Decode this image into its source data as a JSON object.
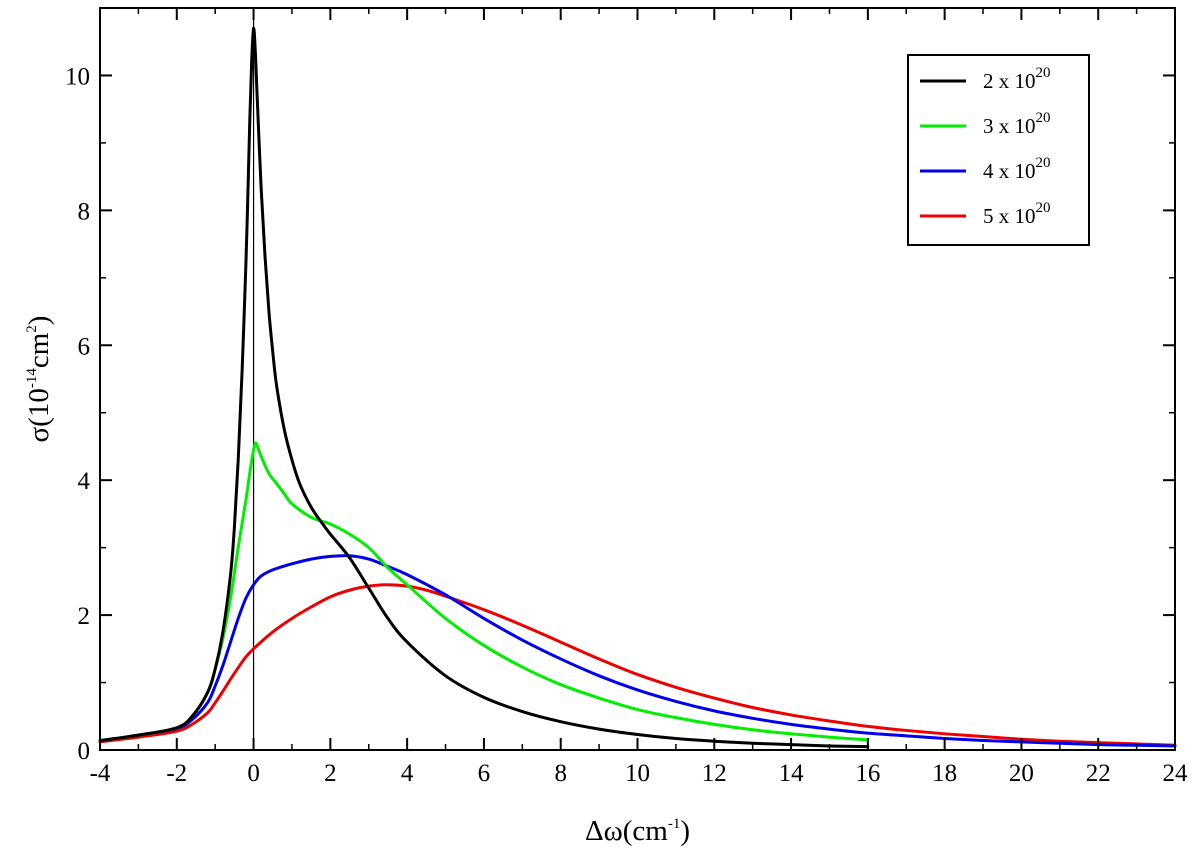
{
  "chart_data": {
    "type": "line",
    "title": "",
    "xlabel": {
      "base": "Δω(cm",
      "sup": "-1",
      "tail": ")"
    },
    "ylabel": {
      "base": "σ(10",
      "sup1": "-14",
      "mid": "cm",
      "sup2": "2",
      "tail": ")"
    },
    "xlim": [
      -4,
      24
    ],
    "ylim": [
      0,
      11
    ],
    "xticks": [
      -4,
      -2,
      0,
      2,
      4,
      6,
      8,
      10,
      12,
      14,
      16,
      18,
      20,
      22,
      24
    ],
    "yticks": [
      0,
      2,
      4,
      6,
      8,
      10
    ],
    "grid": false,
    "legend_position": "top-right",
    "reference_line_x": 0,
    "series": [
      {
        "name": {
          "base": "2 x 10",
          "sup": "20"
        },
        "color": "#000000",
        "x": [
          -4,
          -3,
          -2,
          -1.6,
          -1.2,
          -1.0,
          -0.8,
          -0.6,
          -0.5,
          -0.4,
          -0.3,
          -0.2,
          -0.15,
          -0.1,
          -0.05,
          0,
          0.05,
          0.1,
          0.2,
          0.3,
          0.4,
          0.5,
          0.6,
          0.8,
          1.0,
          1.2,
          1.5,
          1.8,
          2.0,
          2.5,
          3.0,
          3.5,
          4.0,
          5.0,
          6.0,
          7.0,
          8.0,
          9.0,
          10.0,
          11.0,
          12.0,
          13.0,
          14.0,
          15.0,
          16.0
        ],
        "y": [
          0.14,
          0.22,
          0.33,
          0.5,
          0.85,
          1.2,
          1.75,
          2.6,
          3.3,
          4.3,
          5.6,
          7.2,
          8.2,
          9.3,
          10.2,
          10.7,
          10.3,
          9.6,
          8.3,
          7.3,
          6.5,
          5.9,
          5.4,
          4.75,
          4.3,
          3.95,
          3.6,
          3.35,
          3.2,
          2.85,
          2.4,
          1.95,
          1.6,
          1.1,
          0.78,
          0.57,
          0.42,
          0.31,
          0.23,
          0.17,
          0.13,
          0.1,
          0.08,
          0.06,
          0.05
        ]
      },
      {
        "name": {
          "base": "3 x 10",
          "sup": "20"
        },
        "color": "#00ee00",
        "x": [
          -4,
          -3,
          -2,
          -1.6,
          -1.2,
          -1.0,
          -0.8,
          -0.6,
          -0.4,
          -0.2,
          -0.1,
          0,
          0.05,
          0.1,
          0.2,
          0.4,
          0.6,
          0.8,
          1.0,
          1.5,
          2.0,
          2.5,
          3.0,
          3.5,
          4.0,
          5.0,
          6.0,
          7.0,
          8.0,
          9.0,
          10.0,
          11.0,
          12.0,
          13.0,
          14.0,
          15.0,
          16.0
        ],
        "y": [
          0.14,
          0.22,
          0.33,
          0.5,
          0.85,
          1.2,
          1.65,
          2.25,
          3.0,
          3.7,
          4.1,
          4.45,
          4.55,
          4.5,
          4.35,
          4.1,
          3.95,
          3.8,
          3.65,
          3.45,
          3.35,
          3.2,
          3.0,
          2.7,
          2.45,
          1.95,
          1.55,
          1.23,
          0.97,
          0.77,
          0.6,
          0.48,
          0.38,
          0.3,
          0.24,
          0.19,
          0.15
        ]
      },
      {
        "name": {
          "base": "4 x 10",
          "sup": "20"
        },
        "color": "#0000ee",
        "x": [
          -4,
          -3,
          -2,
          -1.6,
          -1.2,
          -1.0,
          -0.8,
          -0.6,
          -0.4,
          -0.2,
          0,
          0.2,
          0.5,
          1.0,
          1.5,
          2.0,
          2.5,
          3.0,
          3.5,
          4.0,
          5.0,
          6.0,
          7.0,
          8.0,
          9.0,
          10.0,
          11.0,
          12.0,
          13.0,
          14.0,
          15.0,
          16.0,
          17.0,
          18.0,
          19.0,
          20.0,
          21.0,
          22.0,
          23.0,
          24.0
        ],
        "y": [
          0.14,
          0.22,
          0.32,
          0.45,
          0.7,
          0.95,
          1.25,
          1.6,
          1.95,
          2.25,
          2.45,
          2.58,
          2.67,
          2.76,
          2.83,
          2.87,
          2.88,
          2.83,
          2.72,
          2.6,
          2.3,
          1.95,
          1.63,
          1.35,
          1.1,
          0.89,
          0.72,
          0.58,
          0.47,
          0.38,
          0.31,
          0.25,
          0.21,
          0.17,
          0.14,
          0.12,
          0.1,
          0.08,
          0.07,
          0.06
        ]
      },
      {
        "name": {
          "base": "5 x 10",
          "sup": "20"
        },
        "color": "#ee0000",
        "x": [
          -4,
          -3,
          -2,
          -1.6,
          -1.2,
          -1.0,
          -0.8,
          -0.6,
          -0.4,
          -0.2,
          0,
          0.5,
          1.0,
          1.5,
          2.0,
          2.5,
          3.0,
          3.5,
          4.0,
          4.5,
          5.0,
          6.0,
          7.0,
          8.0,
          9.0,
          10.0,
          11.0,
          12.0,
          13.0,
          14.0,
          15.0,
          16.0,
          17.0,
          18.0,
          19.0,
          20.0,
          21.0,
          22.0,
          23.0,
          24.0
        ],
        "y": [
          0.12,
          0.19,
          0.28,
          0.38,
          0.55,
          0.7,
          0.87,
          1.05,
          1.22,
          1.38,
          1.5,
          1.75,
          1.95,
          2.12,
          2.27,
          2.37,
          2.43,
          2.45,
          2.43,
          2.37,
          2.28,
          2.08,
          1.85,
          1.6,
          1.35,
          1.12,
          0.93,
          0.77,
          0.63,
          0.52,
          0.43,
          0.35,
          0.29,
          0.24,
          0.2,
          0.16,
          0.13,
          0.11,
          0.09,
          0.07
        ]
      }
    ]
  }
}
